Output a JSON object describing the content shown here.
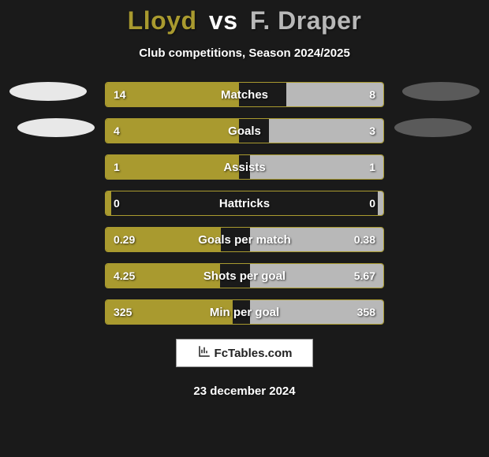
{
  "background_color": "#1a1a1a",
  "player1": {
    "name": "Lloyd",
    "color": "#a99a2f"
  },
  "player2": {
    "name": "F. Draper",
    "color": "#b8b8b8"
  },
  "vs_text": "vs",
  "subtitle": "Club competitions, Season 2024/2025",
  "ovals": {
    "left_color": "#e8e8e8",
    "right_color": "#5a5a5a"
  },
  "row_border_color": "#a99a2f",
  "bar1_color": "#a99a2f",
  "bar2_color": "#b8b8b8",
  "stats": [
    {
      "label": "Matches",
      "v1": "14",
      "v2": "8",
      "raw1": 14,
      "raw2": 8
    },
    {
      "label": "Goals",
      "v1": "4",
      "v2": "3",
      "raw1": 4,
      "raw2": 3
    },
    {
      "label": "Assists",
      "v1": "1",
      "v2": "1",
      "raw1": 1,
      "raw2": 1
    },
    {
      "label": "Hattricks",
      "v1": "0",
      "v2": "0",
      "raw1": 0,
      "raw2": 0
    },
    {
      "label": "Goals per match",
      "v1": "0.29",
      "v2": "0.38",
      "raw1": 0.29,
      "raw2": 0.38
    },
    {
      "label": "Shots per goal",
      "v1": "4.25",
      "v2": "5.67",
      "raw1": 4.25,
      "raw2": 5.67
    },
    {
      "label": "Min per goal",
      "v1": "325",
      "v2": "358",
      "raw1": 325,
      "raw2": 358
    }
  ],
  "max_bar_pct": 48,
  "min_bar_pct": 2,
  "brand": "FcTables.com",
  "date": "23 december 2024"
}
